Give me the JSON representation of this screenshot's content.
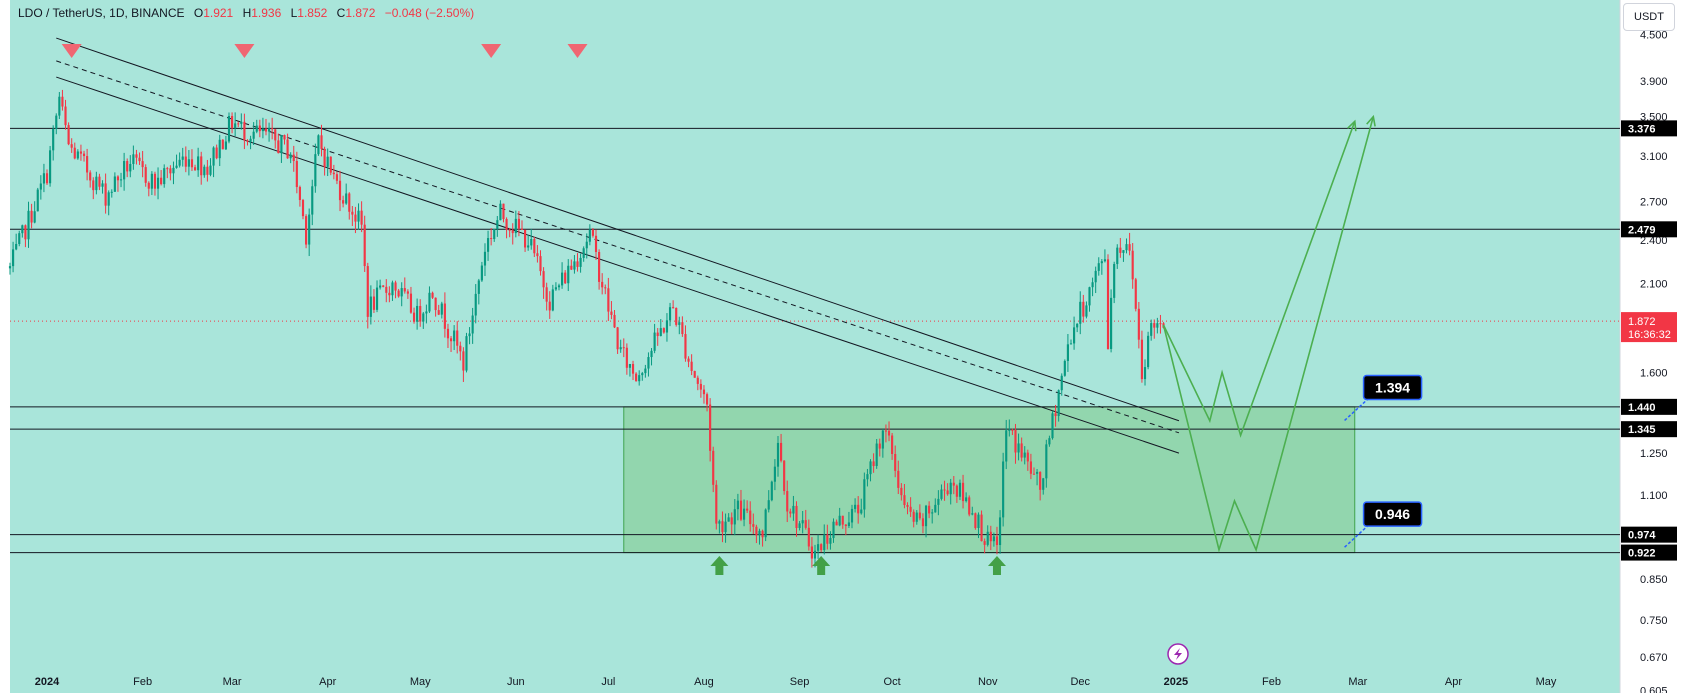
{
  "header": {
    "pair": "LDO / TetherUS, 1D, BINANCE",
    "open_label": "O",
    "open": "1.921",
    "high_label": "H",
    "high": "1.936",
    "low_label": "L",
    "low": "1.852",
    "close_label": "C",
    "close": "1.872",
    "change": "−0.048 (−2.50%)"
  },
  "currency": "USDT",
  "colors": {
    "background": "#a9e5da",
    "up": "#089981",
    "down": "#f23645",
    "zone": "#8ed3a6",
    "zone_border": "#3fa34d",
    "projection": "#4caf50",
    "marker_down": "#f06672",
    "marker_up": "#43a047",
    "last_price": "#f23645"
  },
  "chart_data": {
    "type": "candlestick",
    "title": "LDO / TetherUS, 1D, BINANCE",
    "scale": "log",
    "ylim": [
      0.6,
      5.0
    ],
    "xlim": [
      "2023-12-20",
      "2025-05-25"
    ],
    "y_ticks": [
      "4.500",
      "3.900",
      "3.500",
      "3.100",
      "2.700",
      "2.400",
      "2.100",
      "1.600",
      "1.250",
      "1.100",
      "0.850",
      "0.750",
      "0.670",
      "0.605"
    ],
    "x_ticks": [
      {
        "date": "2024-01-01",
        "label": "2024"
      },
      {
        "date": "2024-02-01",
        "label": "Feb"
      },
      {
        "date": "2024-03-01",
        "label": "Mar"
      },
      {
        "date": "2024-04-01",
        "label": "Apr"
      },
      {
        "date": "2024-05-01",
        "label": "May"
      },
      {
        "date": "2024-06-01",
        "label": "Jun"
      },
      {
        "date": "2024-07-01",
        "label": "Jul"
      },
      {
        "date": "2024-08-01",
        "label": "Aug"
      },
      {
        "date": "2024-09-01",
        "label": "Sep"
      },
      {
        "date": "2024-10-01",
        "label": "Oct"
      },
      {
        "date": "2024-11-01",
        "label": "Nov"
      },
      {
        "date": "2024-12-01",
        "label": "Dec"
      },
      {
        "date": "2025-01-01",
        "label": "2025"
      },
      {
        "date": "2025-02-01",
        "label": "Feb"
      },
      {
        "date": "2025-03-01",
        "label": "Mar"
      },
      {
        "date": "2025-04-01",
        "label": "Apr"
      },
      {
        "date": "2025-05-01",
        "label": "May"
      }
    ],
    "price_path": [
      [
        "2023-12-20",
        2.2
      ],
      [
        "2024-01-01",
        2.95
      ],
      [
        "2024-01-05",
        3.7
      ],
      [
        "2024-01-08",
        3.2
      ],
      [
        "2024-01-12",
        3.05
      ],
      [
        "2024-01-20",
        2.75
      ],
      [
        "2024-01-28",
        3.05
      ],
      [
        "2024-02-05",
        2.85
      ],
      [
        "2024-02-15",
        3.1
      ],
      [
        "2024-02-22",
        3.0
      ],
      [
        "2024-03-01",
        3.45
      ],
      [
        "2024-03-05",
        3.35
      ],
      [
        "2024-03-12",
        3.3
      ],
      [
        "2024-03-20",
        3.15
      ],
      [
        "2024-03-25",
        2.45
      ],
      [
        "2024-03-29",
        3.25
      ],
      [
        "2024-04-03",
        2.9
      ],
      [
        "2024-04-12",
        2.5
      ],
      [
        "2024-04-14",
        1.95
      ],
      [
        "2024-04-22",
        2.1
      ],
      [
        "2024-04-30",
        1.9
      ],
      [
        "2024-05-05",
        2.05
      ],
      [
        "2024-05-15",
        1.65
      ],
      [
        "2024-05-22",
        2.35
      ],
      [
        "2024-05-27",
        2.6
      ],
      [
        "2024-06-05",
        2.4
      ],
      [
        "2024-06-12",
        2.0
      ],
      [
        "2024-06-20",
        2.25
      ],
      [
        "2024-06-25",
        2.45
      ],
      [
        "2024-07-01",
        1.95
      ],
      [
        "2024-07-05",
        1.7
      ],
      [
        "2024-07-10",
        1.58
      ],
      [
        "2024-07-15",
        1.72
      ],
      [
        "2024-07-22",
        1.95
      ],
      [
        "2024-07-28",
        1.62
      ],
      [
        "2024-08-02",
        1.45
      ],
      [
        "2024-08-05",
        1.0
      ],
      [
        "2024-08-12",
        1.05
      ],
      [
        "2024-08-20",
        0.98
      ],
      [
        "2024-08-25",
        1.3
      ],
      [
        "2024-08-28",
        1.08
      ],
      [
        "2024-09-06",
        0.92
      ],
      [
        "2024-09-12",
        1.0
      ],
      [
        "2024-09-20",
        1.05
      ],
      [
        "2024-09-28",
        1.35
      ],
      [
        "2024-10-01",
        1.25
      ],
      [
        "2024-10-05",
        1.05
      ],
      [
        "2024-10-10",
        1.0
      ],
      [
        "2024-10-20",
        1.15
      ],
      [
        "2024-10-27",
        1.05
      ],
      [
        "2024-11-01",
        0.95
      ],
      [
        "2024-11-04",
        0.93
      ],
      [
        "2024-11-07",
        1.35
      ],
      [
        "2024-11-12",
        1.25
      ],
      [
        "2024-11-18",
        1.12
      ],
      [
        "2024-11-23",
        1.45
      ],
      [
        "2024-11-28",
        1.8
      ],
      [
        "2024-12-04",
        2.05
      ],
      [
        "2024-12-09",
        2.3
      ],
      [
        "2024-12-10",
        1.75
      ],
      [
        "2024-12-12",
        2.3
      ],
      [
        "2024-12-16",
        2.4
      ],
      [
        "2024-12-18",
        2.15
      ],
      [
        "2024-12-21",
        1.6
      ],
      [
        "2024-12-24",
        1.85
      ],
      [
        "2024-12-28",
        1.872
      ]
    ],
    "horizontal_levels": [
      3.376,
      2.479,
      1.44,
      1.345,
      0.974,
      0.922
    ],
    "axis_labels": [
      {
        "value": 3.376,
        "text": "3.376"
      },
      {
        "value": 2.479,
        "text": "2.479"
      },
      {
        "value": 1.44,
        "text": "1.440"
      },
      {
        "value": 1.345,
        "text": "1.345"
      },
      {
        "value": 0.974,
        "text": "0.974"
      },
      {
        "value": 0.922,
        "text": "0.922"
      }
    ],
    "last_price": {
      "value": 1.872,
      "text": "1.872",
      "countdown": "16:36:32"
    },
    "zone": {
      "from": "2024-07-06",
      "to": "2025-02-28",
      "top": 1.44,
      "bottom": 0.922
    },
    "trend_lines": [
      {
        "style": "solid",
        "points": [
          [
            "2024-01-04",
            4.45
          ],
          [
            "2025-01-02",
            1.38
          ]
        ]
      },
      {
        "style": "dashed",
        "points": [
          [
            "2024-01-04",
            4.15
          ],
          [
            "2025-01-02",
            1.33
          ]
        ]
      },
      {
        "style": "solid",
        "points": [
          [
            "2024-01-04",
            3.95
          ],
          [
            "2025-01-02",
            1.25
          ]
        ]
      }
    ],
    "callouts": [
      {
        "text": "1.394",
        "value": 1.394,
        "date": "2025-02-26"
      },
      {
        "text": "0.946",
        "value": 0.946,
        "date": "2025-02-26"
      }
    ],
    "projections": [
      [
        [
          "2024-12-28",
          1.85
        ],
        [
          "2025-01-12",
          1.38
        ],
        [
          "2025-01-16",
          1.6
        ],
        [
          "2025-01-22",
          1.32
        ],
        [
          "2025-02-28",
          3.45
        ]
      ],
      [
        [
          "2024-12-28",
          1.85
        ],
        [
          "2025-01-15",
          0.93
        ],
        [
          "2025-01-20",
          1.08
        ],
        [
          "2025-01-27",
          0.93
        ],
        [
          "2025-03-06",
          3.5
        ]
      ]
    ],
    "markers_down": [
      "2024-01-09",
      "2024-03-05",
      "2024-05-24",
      "2024-06-21"
    ],
    "markers_up": [
      "2024-08-06",
      "2024-09-08",
      "2024-11-04"
    ]
  }
}
